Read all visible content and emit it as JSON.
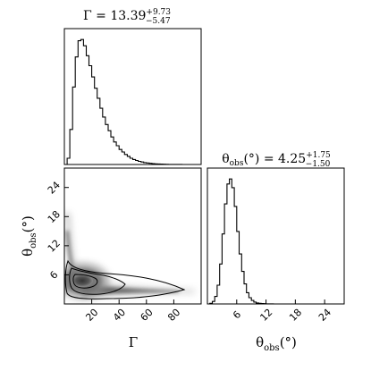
{
  "chart_data": [
    {
      "type": "histogram",
      "panel": "top-left",
      "title": {
        "param": "Γ",
        "median": "13.39",
        "plus": "+9.73",
        "minus": "−5.47"
      },
      "x": {
        "range": [
          0,
          100
        ],
        "ticks": []
      },
      "bins_x": [
        0,
        2,
        4,
        6,
        8,
        10,
        12,
        14,
        16,
        18,
        20,
        22,
        24,
        26,
        28,
        30,
        32,
        34,
        36,
        38,
        40,
        42,
        44,
        46,
        48,
        50,
        52,
        54,
        56,
        58,
        60,
        62,
        64,
        66,
        68,
        70,
        72,
        74,
        76,
        78,
        80,
        82,
        84,
        86,
        88,
        90,
        92,
        94,
        96,
        98
      ],
      "counts": [
        0.0,
        0.05,
        0.28,
        0.62,
        0.86,
        0.99,
        1.0,
        0.95,
        0.87,
        0.79,
        0.7,
        0.61,
        0.53,
        0.45,
        0.38,
        0.32,
        0.27,
        0.22,
        0.18,
        0.15,
        0.12,
        0.1,
        0.08,
        0.065,
        0.05,
        0.04,
        0.032,
        0.025,
        0.02,
        0.015,
        0.012,
        0.009,
        0.007,
        0.005,
        0.004,
        0.003,
        0.002,
        0.0015,
        0.001,
        0.0008,
        0.0006,
        0.0005,
        0.0004,
        0.0003,
        0.0002,
        0.0002,
        0.0001,
        0.0001,
        0.0,
        0.0
      ]
    },
    {
      "type": "heatmap",
      "panel": "bottom-left",
      "xlabel": "Γ",
      "ylabel": "θobs(°)",
      "x": {
        "range": [
          0,
          100
        ],
        "ticks": [
          20,
          40,
          60,
          80
        ],
        "tick_labels": [
          "20",
          "40",
          "60",
          "80"
        ]
      },
      "y": {
        "range": [
          0,
          28
        ],
        "ticks": [
          6,
          12,
          18,
          24
        ],
        "tick_labels": [
          "6",
          "12",
          "18",
          "24"
        ]
      },
      "mode": {
        "x": 13,
        "y": 4.2
      },
      "contour_levels": [
        "1σ",
        "2σ",
        "3σ"
      ]
    },
    {
      "type": "histogram",
      "panel": "bottom-right",
      "title": {
        "param": "θobs(°)",
        "median": "4.25",
        "plus": "+1.75",
        "minus": "−1.50"
      },
      "xlabel": "θobs(°)",
      "x": {
        "range": [
          0,
          28
        ],
        "ticks": [
          6,
          12,
          18,
          24
        ],
        "tick_labels": [
          "6",
          "12",
          "18",
          "24"
        ]
      },
      "bins_x": [
        0,
        0.5,
        1,
        1.5,
        2,
        2.5,
        3,
        3.5,
        4,
        4.5,
        5,
        5.5,
        6,
        6.5,
        7,
        7.5,
        8,
        8.5,
        9,
        9.5,
        10,
        10.5,
        11,
        11.5,
        12,
        12.5,
        13,
        13.5,
        14
      ],
      "counts": [
        0.0,
        0.005,
        0.02,
        0.06,
        0.15,
        0.32,
        0.56,
        0.8,
        0.96,
        1.0,
        0.93,
        0.78,
        0.58,
        0.4,
        0.26,
        0.16,
        0.09,
        0.05,
        0.028,
        0.015,
        0.008,
        0.005,
        0.003,
        0.002,
        0.001,
        0.0008,
        0.0005,
        0.0003,
        0.0
      ]
    }
  ],
  "labels": {
    "gamma_symbol": "Γ",
    "theta_symbol": "θ",
    "theta_sub": "obs",
    "degree": "(°)"
  }
}
